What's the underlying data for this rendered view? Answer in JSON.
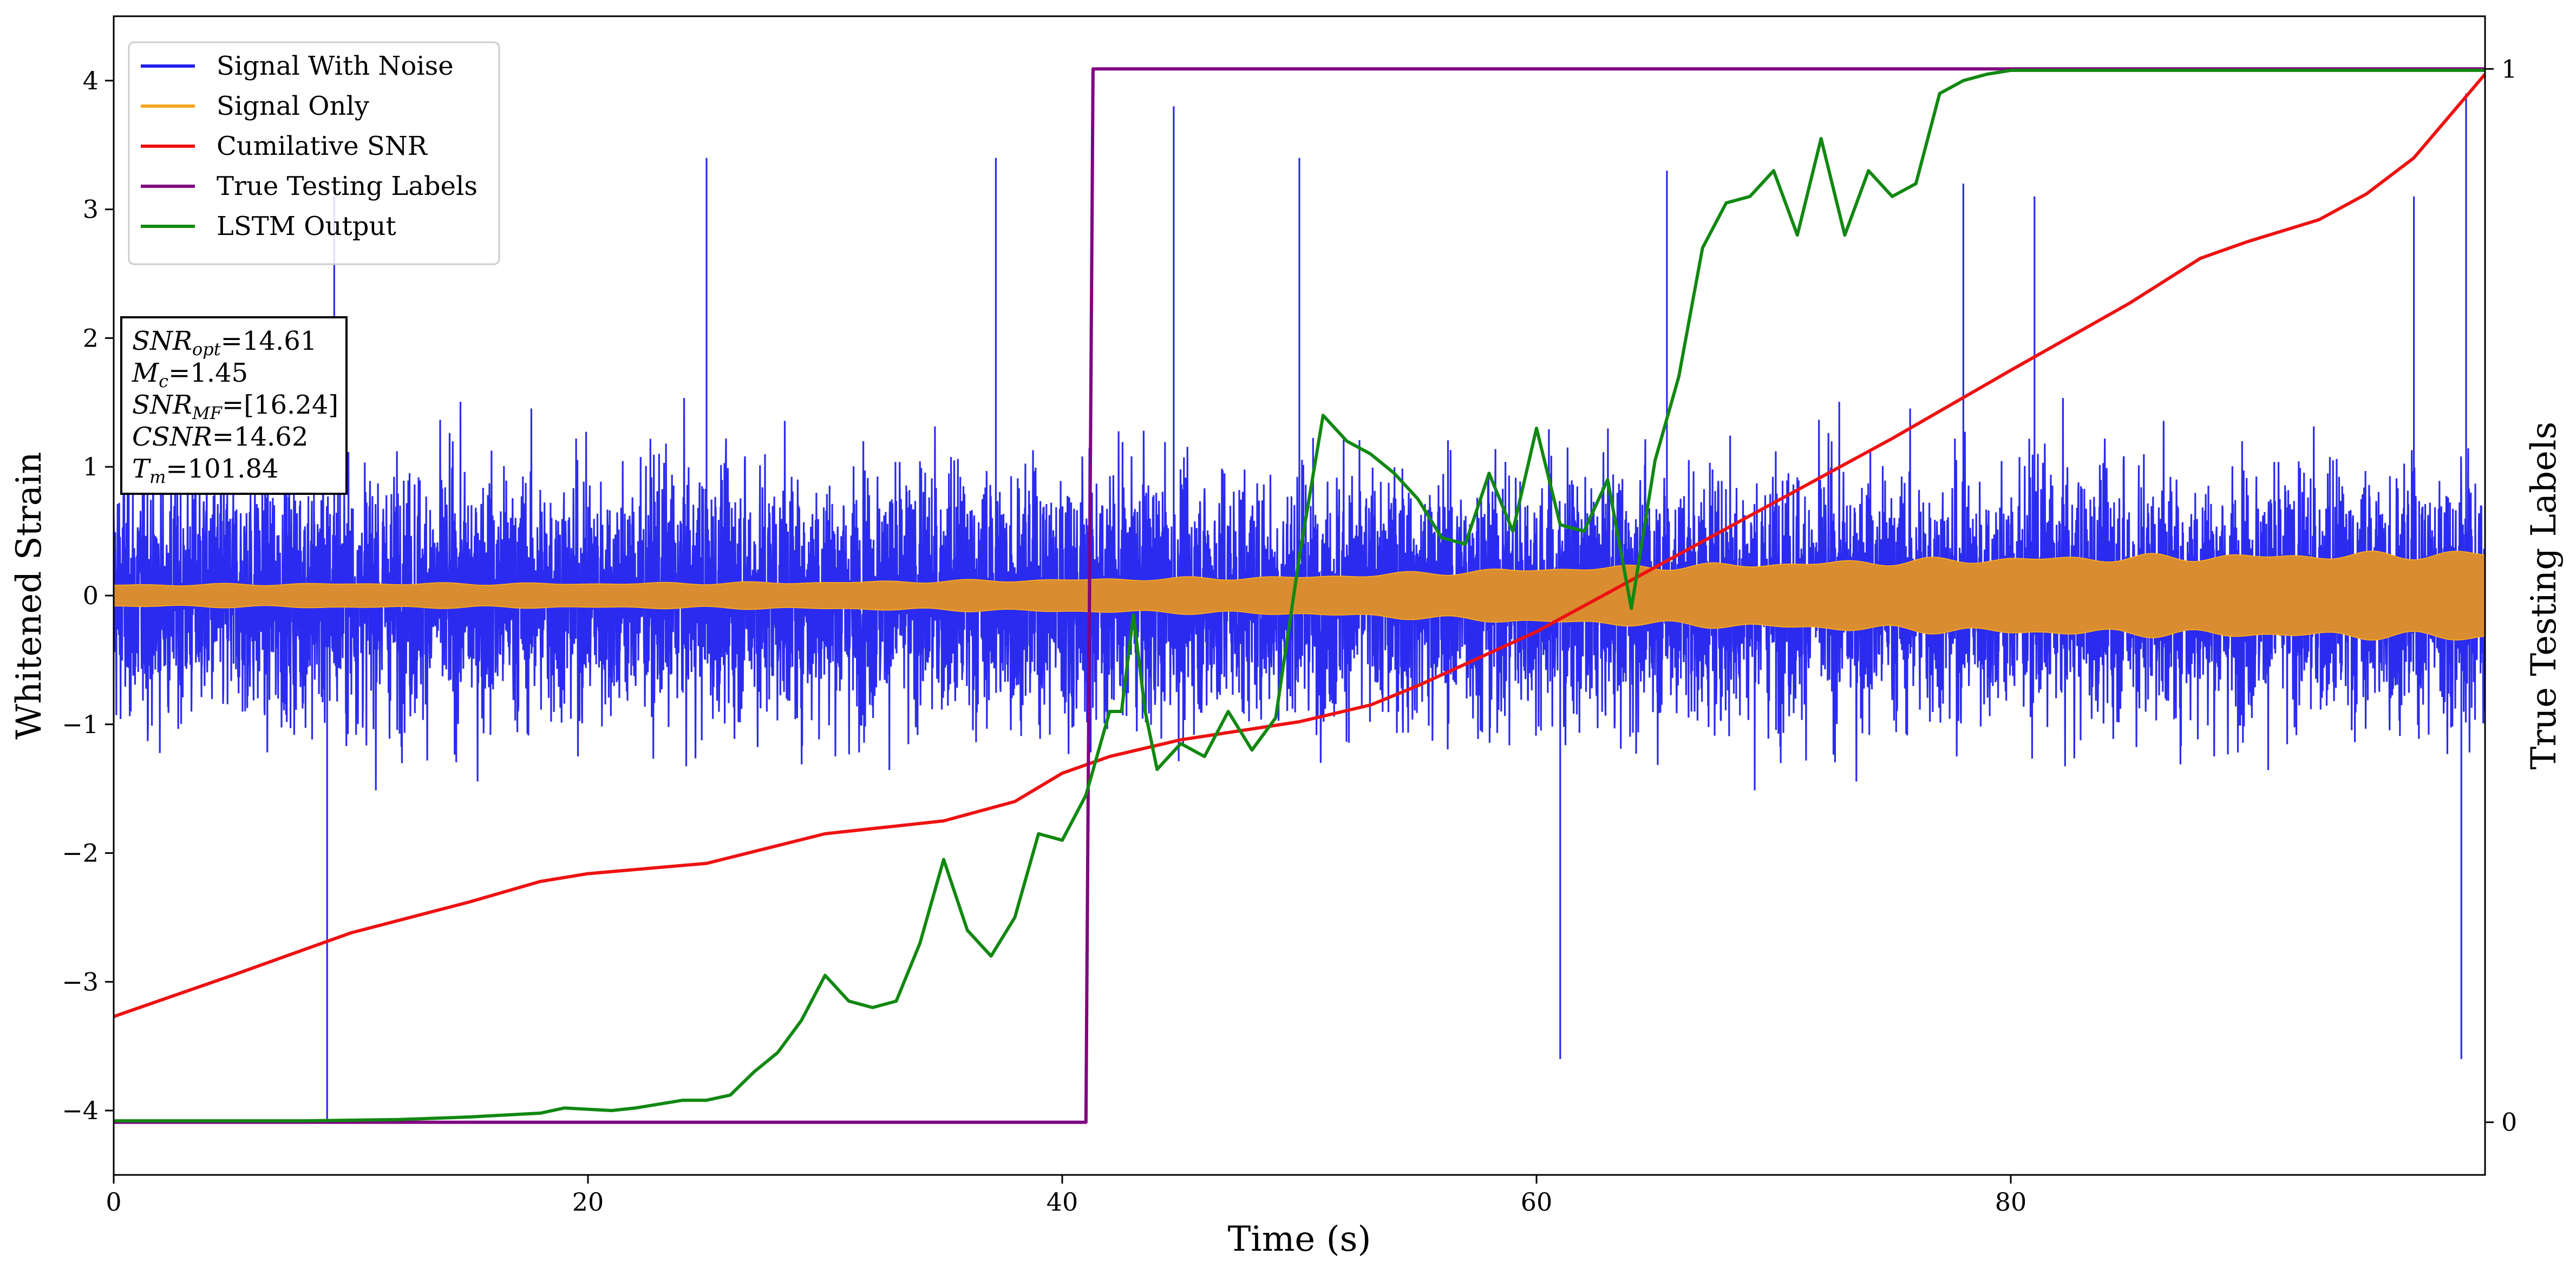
{
  "chart_data": {
    "type": "line",
    "xlabel": "Time (s)",
    "ylabel": "Whitened Strain",
    "y2label": "True Testing Labels",
    "xlim": [
      0,
      100
    ],
    "ylim": [
      -4.5,
      4.5
    ],
    "y2lim": [
      -0.05,
      1.05
    ],
    "x_ticks": [
      0,
      20,
      40,
      60,
      80
    ],
    "y_ticks": [
      -4,
      -3,
      -2,
      -1,
      0,
      1,
      2,
      3,
      4
    ],
    "y2_ticks": [
      0,
      1
    ],
    "grid": false,
    "legend_position": "top-left",
    "series": [
      {
        "name": "Signal With Noise",
        "color": "#2020ee",
        "kind": "noise",
        "description_values": {
          "typical_band": [
            -1.5,
            1.5
          ],
          "spikes": [
            {
              "x": 9.0,
              "y": -4.1
            },
            {
              "x": 9.3,
              "y": 3.1
            },
            {
              "x": 25.0,
              "y": 3.4
            },
            {
              "x": 37.2,
              "y": 3.4
            },
            {
              "x": 44.7,
              "y": 3.8
            },
            {
              "x": 50.0,
              "y": 3.4
            },
            {
              "x": 61.0,
              "y": -3.6
            },
            {
              "x": 65.5,
              "y": 3.3
            },
            {
              "x": 78.0,
              "y": 3.2
            },
            {
              "x": 81.0,
              "y": 3.1
            },
            {
              "x": 97.0,
              "y": 3.1
            },
            {
              "x": 99.2,
              "y": 3.9
            },
            {
              "x": 99.0,
              "y": -3.6
            }
          ]
        }
      },
      {
        "name": "Signal Only",
        "color": "#f5a623",
        "kind": "envelope",
        "envelope": {
          "x": [
            0,
            10,
            20,
            30,
            40,
            45,
            50,
            55,
            60,
            65,
            70,
            75,
            80,
            85,
            90,
            95,
            100
          ],
          "amplitude": [
            0.08,
            0.09,
            0.09,
            0.1,
            0.12,
            0.13,
            0.14,
            0.17,
            0.2,
            0.22,
            0.24,
            0.26,
            0.28,
            0.29,
            0.3,
            0.31,
            0.32
          ]
        }
      },
      {
        "name": "Cumilative SNR",
        "color": "#ee1111",
        "axis": "left",
        "x": [
          0,
          5,
          10,
          15,
          18,
          20,
          25,
          30,
          35,
          38,
          40,
          42,
          45,
          50,
          53,
          55,
          60,
          65,
          70,
          75,
          80,
          85,
          88,
          90,
          93,
          95,
          97,
          100
        ],
        "y": [
          -3.27,
          -2.95,
          -2.62,
          -2.38,
          -2.22,
          -2.16,
          -2.08,
          -1.85,
          -1.75,
          -1.6,
          -1.38,
          -1.25,
          -1.12,
          -0.98,
          -0.85,
          -0.7,
          -0.28,
          0.22,
          0.72,
          1.22,
          1.75,
          2.27,
          2.62,
          2.75,
          2.92,
          3.12,
          3.4,
          4.05
        ]
      },
      {
        "name": "True Testing Labels",
        "color": "#800080",
        "axis": "right",
        "x": [
          0,
          41.0,
          41.3,
          100
        ],
        "y": [
          0,
          0,
          1,
          1
        ]
      },
      {
        "name": "LSTM Output",
        "color": "#118811",
        "axis": "left",
        "x": [
          0,
          8,
          12,
          15,
          17,
          18,
          19,
          20,
          21,
          22,
          23,
          24,
          25,
          26,
          27,
          28,
          29,
          30,
          31,
          32,
          33,
          34,
          35,
          36,
          37,
          38,
          39,
          40,
          41,
          42,
          42.5,
          43,
          43.5,
          44,
          45,
          46,
          47,
          48,
          49,
          50,
          51,
          52,
          53,
          54,
          55,
          56,
          57,
          58,
          59,
          60,
          61,
          62,
          63,
          64,
          65,
          66,
          67,
          68,
          69,
          70,
          71,
          72,
          73,
          74,
          75,
          76,
          77,
          78,
          79,
          80,
          85,
          100
        ],
        "y": [
          -4.08,
          -4.08,
          -4.07,
          -4.05,
          -4.03,
          -4.02,
          -3.98,
          -3.99,
          -4.0,
          -3.98,
          -3.95,
          -3.92,
          -3.92,
          -3.88,
          -3.7,
          -3.55,
          -3.3,
          -2.95,
          -3.15,
          -3.2,
          -3.15,
          -2.7,
          -2.05,
          -2.6,
          -2.8,
          -2.5,
          -1.85,
          -1.9,
          -1.55,
          -0.9,
          -0.9,
          -0.15,
          -0.9,
          -1.35,
          -1.15,
          -1.25,
          -0.9,
          -1.2,
          -0.95,
          0.3,
          1.4,
          1.2,
          1.1,
          0.95,
          0.75,
          0.45,
          0.4,
          0.95,
          0.5,
          1.3,
          0.55,
          0.5,
          0.9,
          -0.1,
          1.05,
          1.7,
          2.7,
          3.05,
          3.1,
          3.3,
          2.8,
          3.55,
          2.8,
          3.3,
          3.1,
          3.2,
          3.9,
          4.0,
          4.05,
          4.08,
          4.08,
          4.08
        ]
      }
    ],
    "annotation": [
      {
        "main": "SNR",
        "sub": "opt",
        "rest": "=14.61"
      },
      {
        "main": "M",
        "sub": "c",
        "rest": "=1.45"
      },
      {
        "main": "SNR",
        "sub": "MF",
        "rest": "=[16.24]"
      },
      {
        "main": "CSNR",
        "sub": "",
        "rest": "=14.62"
      },
      {
        "main": "T",
        "sub": "m",
        "rest": "=101.84"
      }
    ]
  }
}
